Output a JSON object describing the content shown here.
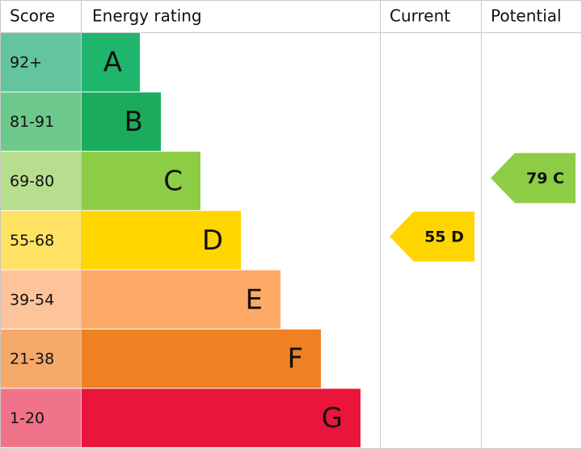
{
  "headers": [
    "Score",
    "Energy rating",
    "Current",
    "Potential"
  ],
  "bands": [
    {
      "score": "92+",
      "letter": "A",
      "color": "#1fb56c",
      "score_color": "#62c5a0"
    },
    {
      "score": "81-91",
      "letter": "B",
      "color": "#1aac5c",
      "score_color": "#6cc98b"
    },
    {
      "score": "69-80",
      "letter": "C",
      "color": "#8dcd45",
      "score_color": "#b6de8e"
    },
    {
      "score": "55-68",
      "letter": "D",
      "color": "#ffd500",
      "score_color": "#ffe263"
    },
    {
      "score": "39-54",
      "letter": "E",
      "color": "#fcaa65",
      "score_color": "#fdc49b"
    },
    {
      "score": "21-38",
      "letter": "F",
      "color": "#ef8023",
      "score_color": "#f4a96b"
    },
    {
      "score": "1-20",
      "letter": "G",
      "color": "#e9153b",
      "score_color": "#f07389"
    }
  ],
  "current": {
    "label": "55 D",
    "band": 3
  },
  "potential": {
    "label": "79 C",
    "band": 2
  }
}
